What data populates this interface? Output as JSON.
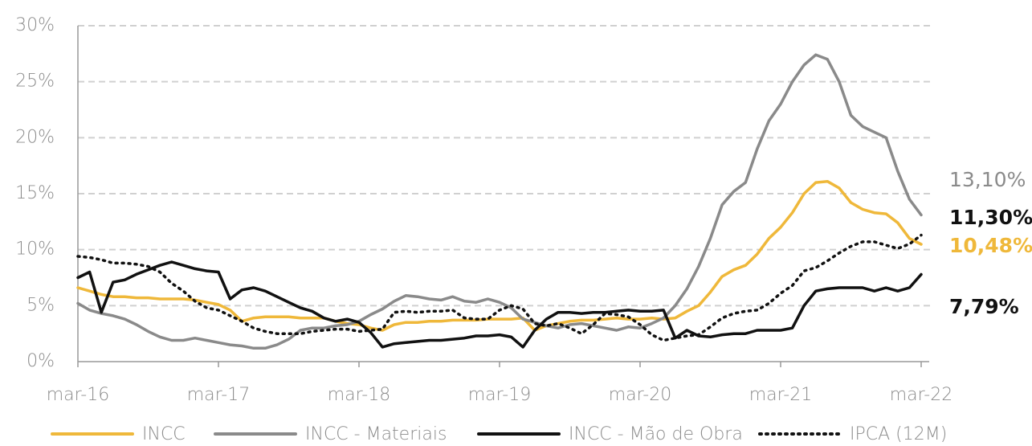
{
  "chart_data": {
    "type": "line",
    "categories": [
      "mar-16",
      null,
      null,
      null,
      null,
      null,
      null,
      null,
      null,
      null,
      null,
      null,
      "mar-17",
      null,
      null,
      null,
      null,
      null,
      null,
      null,
      null,
      null,
      null,
      null,
      "mar-18",
      null,
      null,
      null,
      null,
      null,
      null,
      null,
      null,
      null,
      null,
      null,
      "mar-19",
      null,
      null,
      null,
      null,
      null,
      null,
      null,
      null,
      null,
      null,
      null,
      "mar-20",
      null,
      null,
      null,
      null,
      null,
      null,
      null,
      null,
      null,
      null,
      null,
      "mar-21",
      null,
      null,
      null,
      null,
      null,
      null,
      null,
      null,
      null,
      null,
      null,
      "mar-22"
    ],
    "ylim": [
      0,
      30
    ],
    "yticks": [
      {
        "value": 0,
        "label": "0%"
      },
      {
        "value": 5,
        "label": "5%"
      },
      {
        "value": 10,
        "label": "10%"
      },
      {
        "value": 15,
        "label": "15%"
      },
      {
        "value": 20,
        "label": "20%"
      },
      {
        "value": 25,
        "label": "25%"
      },
      {
        "value": 30,
        "label": "30%"
      }
    ],
    "grid": true,
    "legend": "bottom",
    "series": [
      {
        "name": "INCC",
        "color": "#efb83a",
        "dash": "solid",
        "end_label": "10,48%",
        "values": [
          6.6,
          6.3,
          6.0,
          5.8,
          5.8,
          5.7,
          5.7,
          5.6,
          5.6,
          5.6,
          5.5,
          5.3,
          5.1,
          4.6,
          3.6,
          3.9,
          4.0,
          4.0,
          4.0,
          3.9,
          3.9,
          3.9,
          3.6,
          3.4,
          3.3,
          3.0,
          2.8,
          3.3,
          3.5,
          3.5,
          3.6,
          3.6,
          3.7,
          3.7,
          3.7,
          3.8,
          3.8,
          3.8,
          3.9,
          2.8,
          3.2,
          3.4,
          3.6,
          3.7,
          3.7,
          3.8,
          3.9,
          3.8,
          3.8,
          3.9,
          3.8,
          3.9,
          4.5,
          5.0,
          6.2,
          7.6,
          8.2,
          8.6,
          9.6,
          11.0,
          12.0,
          13.3,
          15.0,
          16.0,
          16.1,
          15.5,
          14.2,
          13.6,
          13.3,
          13.2,
          12.4,
          11.0,
          10.48
        ]
      },
      {
        "name": "INCC - Materiais",
        "color": "#8a8a8a",
        "dash": "solid",
        "end_label": "13,10%",
        "values": [
          5.2,
          4.6,
          4.3,
          4.1,
          3.8,
          3.3,
          2.7,
          2.2,
          1.9,
          1.9,
          2.1,
          1.9,
          1.7,
          1.5,
          1.4,
          1.2,
          1.2,
          1.5,
          2.0,
          2.8,
          3.0,
          3.0,
          3.2,
          3.3,
          3.6,
          4.2,
          4.7,
          5.4,
          5.9,
          5.8,
          5.6,
          5.5,
          5.8,
          5.4,
          5.3,
          5.6,
          5.3,
          4.8,
          3.8,
          3.5,
          3.2,
          3.0,
          3.3,
          3.4,
          3.2,
          3.0,
          2.8,
          3.1,
          3.0,
          3.4,
          3.9,
          5.0,
          6.5,
          8.5,
          11,
          14,
          15.2,
          16,
          19,
          21.5,
          23,
          25,
          26.5,
          27.4,
          27,
          25,
          22,
          21,
          20.5,
          20,
          17,
          14.5,
          13.1
        ]
      },
      {
        "name": "INCC - Mão de Obra",
        "color": "#111111",
        "dash": "solid",
        "end_label": "7,79%",
        "values": [
          7.5,
          8.0,
          4.4,
          7.1,
          7.3,
          7.8,
          8.2,
          8.6,
          8.9,
          8.6,
          8.3,
          8.1,
          8.0,
          5.6,
          6.4,
          6.6,
          6.3,
          5.8,
          5.3,
          4.8,
          4.5,
          3.9,
          3.6,
          3.8,
          3.5,
          2.6,
          1.3,
          1.6,
          1.7,
          1.8,
          1.9,
          1.9,
          2.0,
          2.1,
          2.3,
          2.3,
          2.4,
          2.2,
          1.3,
          2.8,
          3.8,
          4.4,
          4.4,
          4.3,
          4.4,
          4.4,
          4.5,
          4.6,
          4.5,
          4.5,
          4.6,
          2.1,
          2.8,
          2.3,
          2.2,
          2.4,
          2.5,
          2.5,
          2.8,
          2.8,
          2.8,
          3.0,
          5.0,
          6.3,
          6.5,
          6.6,
          6.6,
          6.6,
          6.3,
          6.6,
          6.3,
          6.6,
          7.79
        ]
      },
      {
        "name": "IPCA (12M)",
        "color": "#111111",
        "dash": "dotted",
        "end_label": "11,30%",
        "values": [
          9.4,
          9.3,
          9.1,
          8.8,
          8.8,
          8.7,
          8.5,
          8.0,
          7.0,
          6.3,
          5.4,
          4.8,
          4.6,
          4.1,
          3.6,
          3.0,
          2.7,
          2.5,
          2.5,
          2.5,
          2.7,
          2.8,
          2.9,
          2.9,
          2.7,
          2.8,
          2.9,
          4.4,
          4.5,
          4.4,
          4.5,
          4.5,
          4.6,
          3.9,
          3.8,
          3.8,
          4.6,
          5.0,
          4.7,
          3.4,
          3.2,
          3.4,
          3.0,
          2.5,
          3.3,
          4.3,
          4.2,
          4.0,
          3.3,
          2.4,
          1.9,
          2.1,
          2.3,
          2.4,
          3.1,
          3.9,
          4.3,
          4.5,
          4.6,
          5.2,
          6.1,
          6.8,
          8.1,
          8.4,
          9.0,
          9.7,
          10.3,
          10.7,
          10.7,
          10.4,
          10.1,
          10.5,
          11.3
        ]
      }
    ]
  }
}
